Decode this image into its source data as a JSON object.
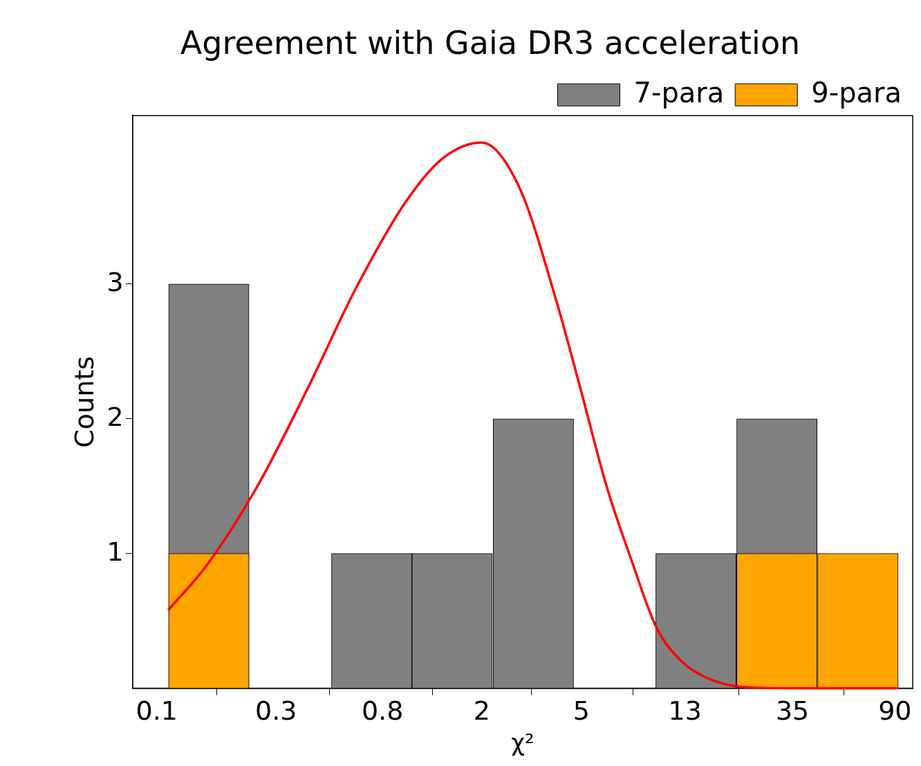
{
  "chart_data": {
    "type": "histogram",
    "title": "Agreement with Gaia DR3 acceleration",
    "xlabel": "χ²",
    "ylabel": "Counts",
    "bins": [
      0.111,
      0.235,
      0.5,
      1.05,
      2.2,
      4.7,
      9.9,
      20.9,
      44,
      93
    ],
    "series": [
      {
        "name": "7-para",
        "color": "#808080",
        "values": [
          3,
          0,
          1,
          1,
          2,
          0,
          1,
          2,
          null
        ]
      },
      {
        "name": "9-para",
        "color": "#ffa500",
        "values": [
          1,
          0,
          0,
          0,
          0,
          0,
          0,
          1,
          1
        ]
      },
      {
        "type": "line",
        "color": "#ff0000",
        "x": [
          0.111,
          0.158,
          0.251,
          0.398,
          0.631,
          1,
          1.41,
          2,
          2.82,
          3.98,
          5,
          6.31,
          7.94,
          10,
          12.6,
          15.8,
          20,
          25,
          40,
          93
        ],
        "values": [
          0.58,
          0.91,
          1.49,
          2.21,
          2.98,
          3.62,
          3.94,
          4.05,
          3.72,
          2.87,
          2.2,
          1.5,
          0.95,
          0.45,
          0.2,
          0.08,
          0.02,
          0.005,
          0,
          0
        ]
      }
    ],
    "log": "x",
    "xlim": [
      0.08,
      106
    ],
    "xticks": [
      0.1,
      0.3,
      0.8,
      2,
      5,
      13,
      35,
      90
    ],
    "ylim": [
      0,
      4.25
    ],
    "yticks": [
      1,
      2,
      3
    ],
    "grid": false,
    "legend": "top right",
    "marker": "none",
    "line_style": "solid"
  }
}
